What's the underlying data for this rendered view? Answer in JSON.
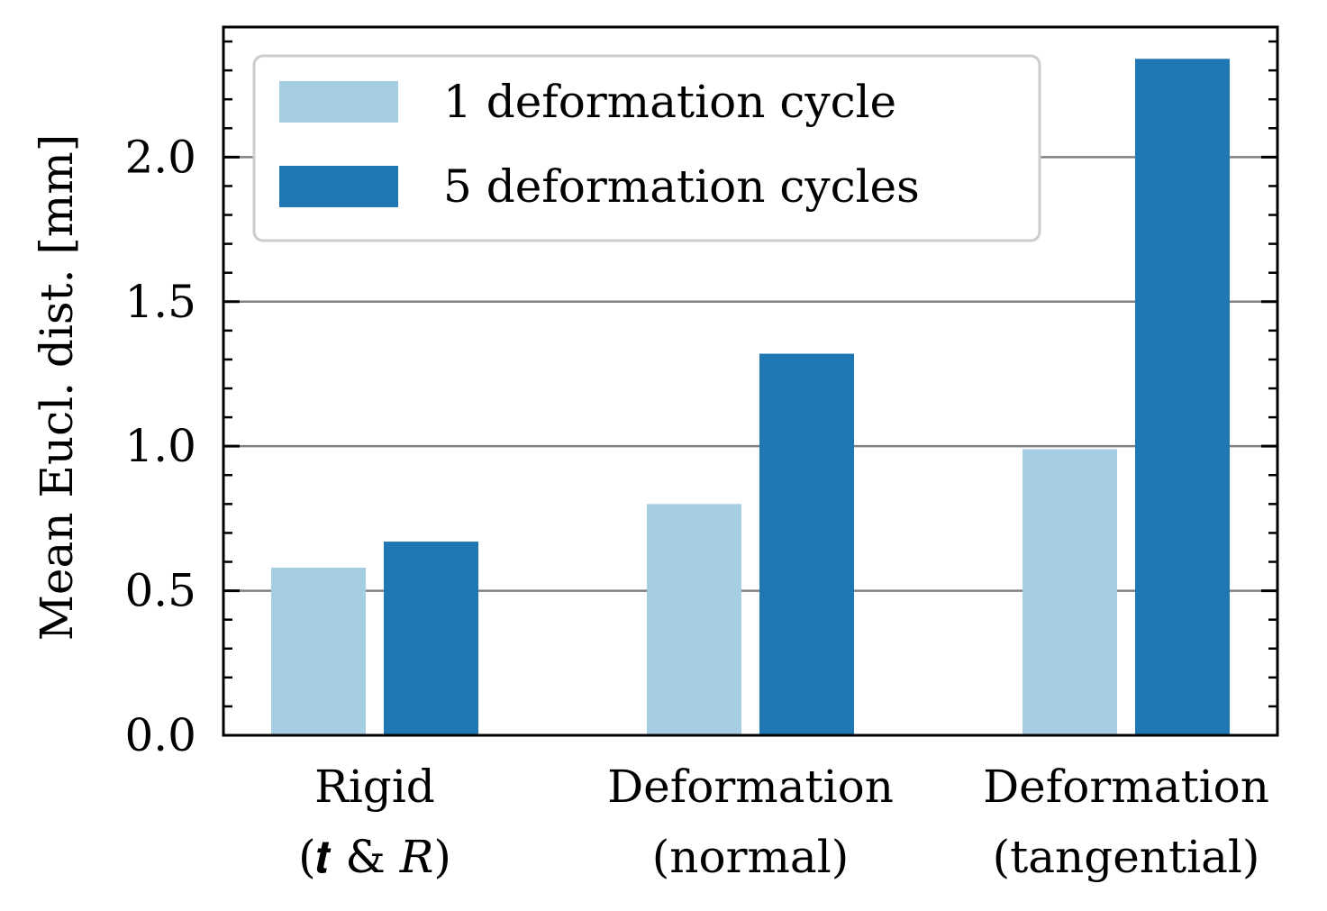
{
  "chart_data": {
    "type": "bar",
    "title": "",
    "xlabel": "",
    "ylabel": "Mean Eucl. dist. [mm]",
    "ylim": [
      0,
      2.45
    ],
    "yticks": [
      "0.0",
      "0.5",
      "1.0",
      "1.5",
      "2.0"
    ],
    "ytick_values": [
      0,
      0.5,
      1.0,
      1.5,
      2.0
    ],
    "grid": "horizontal",
    "legend_position": "top-left",
    "categories": [
      {
        "line1": "Rigid",
        "line2": "(𝒕 & 𝑅)"
      },
      {
        "line1": "Deformation",
        "line2": "(normal)"
      },
      {
        "line1": "Deformation",
        "line2": "(tangential)"
      }
    ],
    "series": [
      {
        "name": "1 deformation cycle",
        "color": "#a6cee3",
        "values": [
          0.58,
          0.8,
          0.99
        ]
      },
      {
        "name": "5 deformation cycles",
        "color": "#1f78b4",
        "values": [
          0.67,
          1.32,
          2.34
        ]
      }
    ]
  }
}
